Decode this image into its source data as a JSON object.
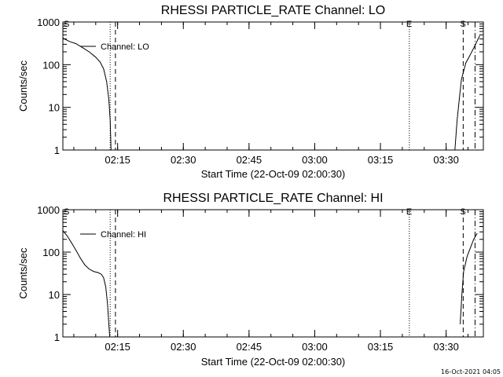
{
  "footer": {
    "timestamp": "16-Oct-2021 04:05"
  },
  "chart_data": [
    {
      "type": "line",
      "title": "RHESSI PARTICLE_RATE Channel: LO",
      "xlabel": "Start Time (22-Oct-09 02:00:30)",
      "ylabel": "Counts/sec",
      "yscale": "log",
      "ylim": [
        1,
        1000
      ],
      "xlim_minutes": [
        2.5,
        98.5
      ],
      "x_ticks": [
        {
          "minutes": 15,
          "label": "02:15"
        },
        {
          "minutes": 30,
          "label": "02:30"
        },
        {
          "minutes": 45,
          "label": "02:45"
        },
        {
          "minutes": 60,
          "label": "03:00"
        },
        {
          "minutes": 75,
          "label": "03:15"
        },
        {
          "minutes": 90,
          "label": "03:30"
        }
      ],
      "y_ticks": [
        {
          "value": 1,
          "label": "1"
        },
        {
          "value": 10,
          "label": "10"
        },
        {
          "value": 100,
          "label": "100"
        },
        {
          "value": 1000,
          "label": "1000"
        }
      ],
      "legend": {
        "position": "top-left",
        "entries": [
          "Channel: LO"
        ]
      },
      "series": [
        {
          "name": "Channel: LO",
          "segments": [
            [
              [
                2.5,
                420
              ],
              [
                4,
                350
              ],
              [
                5.5,
                310
              ],
              [
                7,
                250
              ],
              [
                8.5,
                200
              ],
              [
                10,
                150
              ],
              [
                11,
                115
              ],
              [
                11.8,
                80
              ],
              [
                12.5,
                40
              ],
              [
                13,
                15
              ],
              [
                13.3,
                5
              ],
              [
                13.5,
                1
              ]
            ],
            [
              [
                92,
                1
              ],
              [
                92.5,
                5
              ],
              [
                93,
                15
              ],
              [
                93.5,
                45
              ],
              [
                94.5,
                110
              ],
              [
                95.5,
                170
              ],
              [
                96.5,
                270
              ],
              [
                97.3,
                400
              ],
              [
                97.7,
                480
              ]
            ]
          ]
        }
      ],
      "vlines": [
        {
          "minutes": 13.3,
          "style": "dotted"
        },
        {
          "minutes": 14.5,
          "style": "dashed"
        },
        {
          "minutes": 81.6,
          "style": "dotted",
          "label": "E"
        },
        {
          "minutes": 93.9,
          "style": "dashed",
          "label": "S"
        },
        {
          "minutes": 96.6,
          "style": "dashdot"
        }
      ],
      "corner_marker": {
        "label": "S"
      }
    },
    {
      "type": "line",
      "title": "RHESSI PARTICLE_RATE Channel: HI",
      "xlabel": "Start Time (22-Oct-09 02:00:30)",
      "ylabel": "Counts/sec",
      "yscale": "log",
      "ylim": [
        1,
        1000
      ],
      "xlim_minutes": [
        2.5,
        98.5
      ],
      "x_ticks": [
        {
          "minutes": 15,
          "label": "02:15"
        },
        {
          "minutes": 30,
          "label": "02:30"
        },
        {
          "minutes": 45,
          "label": "02:45"
        },
        {
          "minutes": 60,
          "label": "03:00"
        },
        {
          "minutes": 75,
          "label": "03:15"
        },
        {
          "minutes": 90,
          "label": "03:30"
        }
      ],
      "y_ticks": [
        {
          "value": 1,
          "label": "1"
        },
        {
          "value": 10,
          "label": "10"
        },
        {
          "value": 100,
          "label": "100"
        },
        {
          "value": 1000,
          "label": "1000"
        }
      ],
      "legend": {
        "position": "top-left",
        "entries": [
          "Channel: HI"
        ]
      },
      "series": [
        {
          "name": "Channel: HI",
          "segments": [
            [
              [
                2.5,
                320
              ],
              [
                3.5,
                240
              ],
              [
                4.5,
                165
              ],
              [
                5.5,
                110
              ],
              [
                6.5,
                72
              ],
              [
                7.5,
                50
              ],
              [
                8.5,
                40
              ],
              [
                9.5,
                35
              ],
              [
                10.5,
                33
              ],
              [
                11.3,
                30
              ],
              [
                11.8,
                25
              ],
              [
                12.3,
                15
              ],
              [
                12.7,
                6
              ],
              [
                13,
                2
              ],
              [
                13.2,
                1
              ]
            ],
            [
              [
                93.2,
                2
              ],
              [
                93.6,
                10
              ],
              [
                94,
                35
              ],
              [
                94.8,
                80
              ],
              [
                95.6,
                130
              ],
              [
                96.3,
                200
              ],
              [
                97.1,
                280
              ]
            ]
          ]
        }
      ],
      "vlines": [
        {
          "minutes": 13.3,
          "style": "dotted"
        },
        {
          "minutes": 14.5,
          "style": "dashed"
        },
        {
          "minutes": 81.6,
          "style": "dotted",
          "label": "E"
        },
        {
          "minutes": 93.9,
          "style": "dashed",
          "label": "S"
        },
        {
          "minutes": 96.6,
          "style": "dashdot"
        }
      ],
      "corner_marker": {
        "label": "S"
      }
    }
  ]
}
